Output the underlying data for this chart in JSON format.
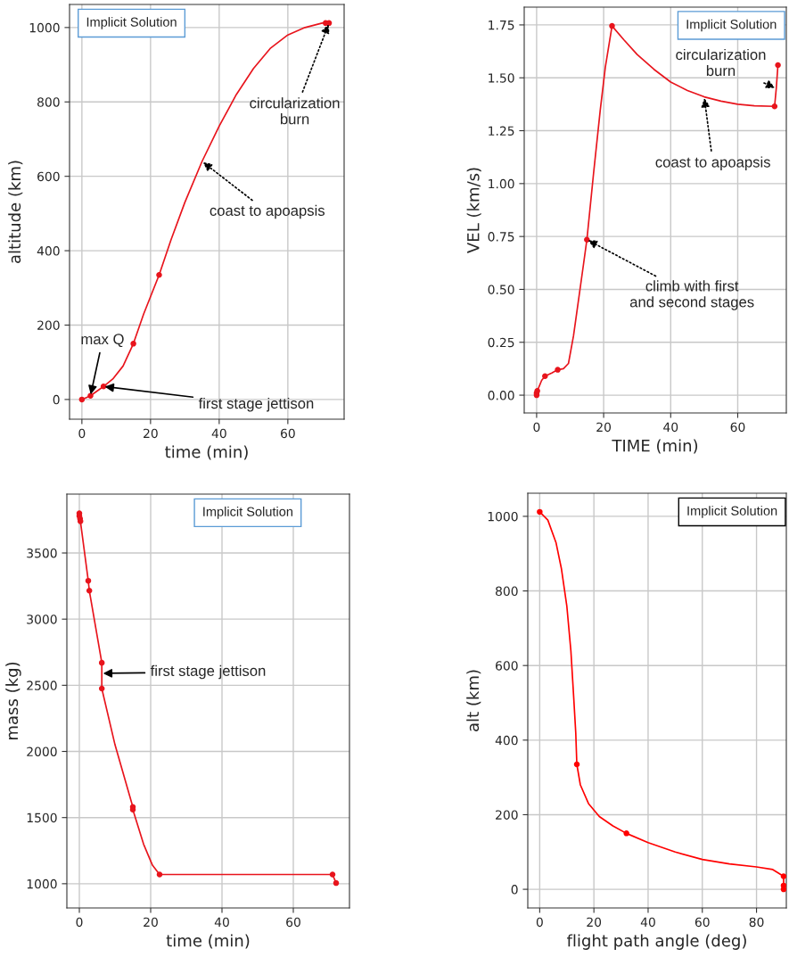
{
  "chart_data": [
    {
      "type": "line",
      "xlabel": "time (min)",
      "ylabel": "altitude (km)",
      "xlim": [
        -3.6,
        76.4
      ],
      "ylim": [
        -53,
        1062
      ],
      "xticks": [
        0,
        20,
        40,
        60
      ],
      "yticks": [
        0,
        200,
        400,
        600,
        800,
        1000
      ],
      "grid": true,
      "series": [
        {
          "marker": "none",
          "color": "#e8141c",
          "x": [
            0,
            2.5,
            6.3,
            9,
            12,
            15,
            18,
            22.5,
            26,
            30,
            35,
            40,
            45,
            50,
            55,
            60,
            65,
            70,
            72
          ],
          "values": [
            0,
            10,
            35,
            55,
            90,
            150,
            230,
            335,
            430,
            530,
            640,
            735,
            820,
            890,
            945,
            980,
            1000,
            1012,
            1012
          ]
        },
        {
          "type": "scatter",
          "marker": "circle",
          "color": "#e8141c",
          "x": [
            0,
            2.5,
            6.3,
            15,
            22.5,
            71,
            72
          ],
          "values": [
            0,
            10,
            35,
            150,
            335,
            1012,
            1012
          ]
        }
      ],
      "annotations": [
        "Implicit Solution",
        {
          "text": "max Q",
          "x": 2.5,
          "y": 10
        },
        {
          "text": "first stage jettison",
          "x": 6.3,
          "y": 35
        },
        {
          "text": "circularization\nburn",
          "x": 72,
          "y": 1012
        },
        {
          "text": "coast to apoapsis",
          "x": 35,
          "y": 640
        }
      ]
    },
    {
      "type": "line",
      "xlabel": "TIME (min)",
      "ylabel": "VEL (km/s)",
      "xlim": [
        -3.7,
        74.5
      ],
      "ylim": [
        -0.084,
        1.834
      ],
      "xticks": [
        0,
        20,
        40,
        60
      ],
      "yticks": [
        {
          "value": 0,
          "label": "0.00"
        },
        {
          "value": 0.25,
          "label": "0.25"
        },
        {
          "value": 0.5,
          "label": "0.50"
        },
        {
          "value": 0.75,
          "label": "0.75"
        },
        {
          "value": 1,
          "label": "1.00"
        },
        {
          "value": 1.25,
          "label": "1.25"
        },
        {
          "value": 1.5,
          "label": "1.50"
        },
        {
          "value": 1.75,
          "label": "1.75"
        }
      ],
      "grid": true,
      "series": [
        {
          "marker": "none",
          "color": "#e8141c",
          "x": [
            0,
            0.2,
            1.5,
            2.5,
            4.5,
            6.3,
            8,
            9.5,
            11,
            12.5,
            14,
            15,
            17,
            19,
            20.5,
            22.5,
            26,
            30,
            35,
            40,
            45,
            50,
            55,
            60,
            65,
            71,
            71.5,
            72
          ],
          "values": [
            0,
            0.02,
            0.07,
            0.09,
            0.105,
            0.12,
            0.125,
            0.15,
            0.28,
            0.45,
            0.62,
            0.735,
            1.05,
            1.35,
            1.55,
            1.745,
            1.68,
            1.61,
            1.54,
            1.48,
            1.44,
            1.41,
            1.39,
            1.375,
            1.368,
            1.365,
            1.45,
            1.56
          ]
        },
        {
          "type": "scatter",
          "marker": "circle",
          "color": "#e8141c",
          "x": [
            0,
            0,
            0.2,
            2.5,
            6.3,
            15,
            22.5,
            71,
            72
          ],
          "values": [
            0,
            0.01,
            0.02,
            0.09,
            0.12,
            0.735,
            1.745,
            1.365,
            1.56
          ]
        }
      ],
      "annotations": [
        "Implicit Solution",
        {
          "text": "circularization\nburn",
          "x": 71.5,
          "y": 1.45
        },
        {
          "text": "coast to apoapsis",
          "x": 50,
          "y": 1.41
        },
        {
          "text": "climb with first\nand second stages",
          "x": 15,
          "y": 0.735
        }
      ]
    },
    {
      "type": "line",
      "xlabel": "time (min)",
      "ylabel": "mass (kg)",
      "xlim": [
        -3.5,
        75.75
      ],
      "ylim": [
        817,
        3945
      ],
      "xticks": [
        0,
        20,
        40,
        60
      ],
      "yticks": [
        1000,
        1500,
        2000,
        2500,
        3000,
        3500
      ],
      "grid": true,
      "series": [
        {
          "marker": "none",
          "color": "#e8141c",
          "x": [
            0,
            0,
            0.2,
            0.3,
            2.5,
            2.8,
            6.3,
            6.3,
            10,
            15,
            15,
            18,
            20.5,
            22.5,
            71,
            72
          ],
          "values": [
            3800,
            3780,
            3760,
            3740,
            3290,
            3215,
            2670,
            2475,
            2050,
            1580,
            1560,
            1300,
            1140,
            1070,
            1070,
            1005
          ]
        },
        {
          "type": "scatter",
          "marker": "circle",
          "color": "#e8141c",
          "x": [
            0,
            0,
            0.2,
            0.3,
            2.5,
            2.8,
            6.3,
            6.3,
            15,
            15,
            22.5,
            71,
            72
          ],
          "values": [
            3800,
            3780,
            3760,
            3740,
            3290,
            3215,
            2670,
            2475,
            1580,
            1560,
            1070,
            1070,
            1005
          ]
        }
      ],
      "annotations": [
        "Implicit Solution",
        {
          "text": "first stage jettison",
          "x": 6.3,
          "y": 2590
        }
      ]
    },
    {
      "type": "line",
      "xlabel": "flight path angle (deg)",
      "ylabel": "alt (km)",
      "xlim": [
        -4.4,
        91
      ],
      "ylim": [
        -50,
        1062
      ],
      "xticks": [
        0,
        20,
        40,
        60,
        80
      ],
      "yticks": [
        0,
        200,
        400,
        600,
        800,
        1000
      ],
      "grid": true,
      "series": [
        {
          "marker": "none",
          "color": "#ff0000",
          "x": [
            0,
            3,
            6,
            8,
            10,
            11.5,
            12.5,
            13.3,
            13.7,
            15,
            18,
            22,
            27,
            32,
            40,
            50,
            60,
            70,
            80,
            86,
            90,
            90
          ],
          "values": [
            1012,
            990,
            930,
            860,
            760,
            640,
            520,
            420,
            335,
            280,
            230,
            195,
            170,
            150,
            125,
            100,
            80,
            68,
            60,
            53,
            35,
            0
          ]
        },
        {
          "type": "scatter",
          "marker": "circle",
          "color": "#ff0000",
          "x": [
            0,
            13.7,
            32,
            90,
            90,
            90
          ],
          "values": [
            1012,
            335,
            150,
            35,
            10,
            0
          ]
        }
      ],
      "annotations": [
        "Implicit Solution"
      ]
    }
  ]
}
